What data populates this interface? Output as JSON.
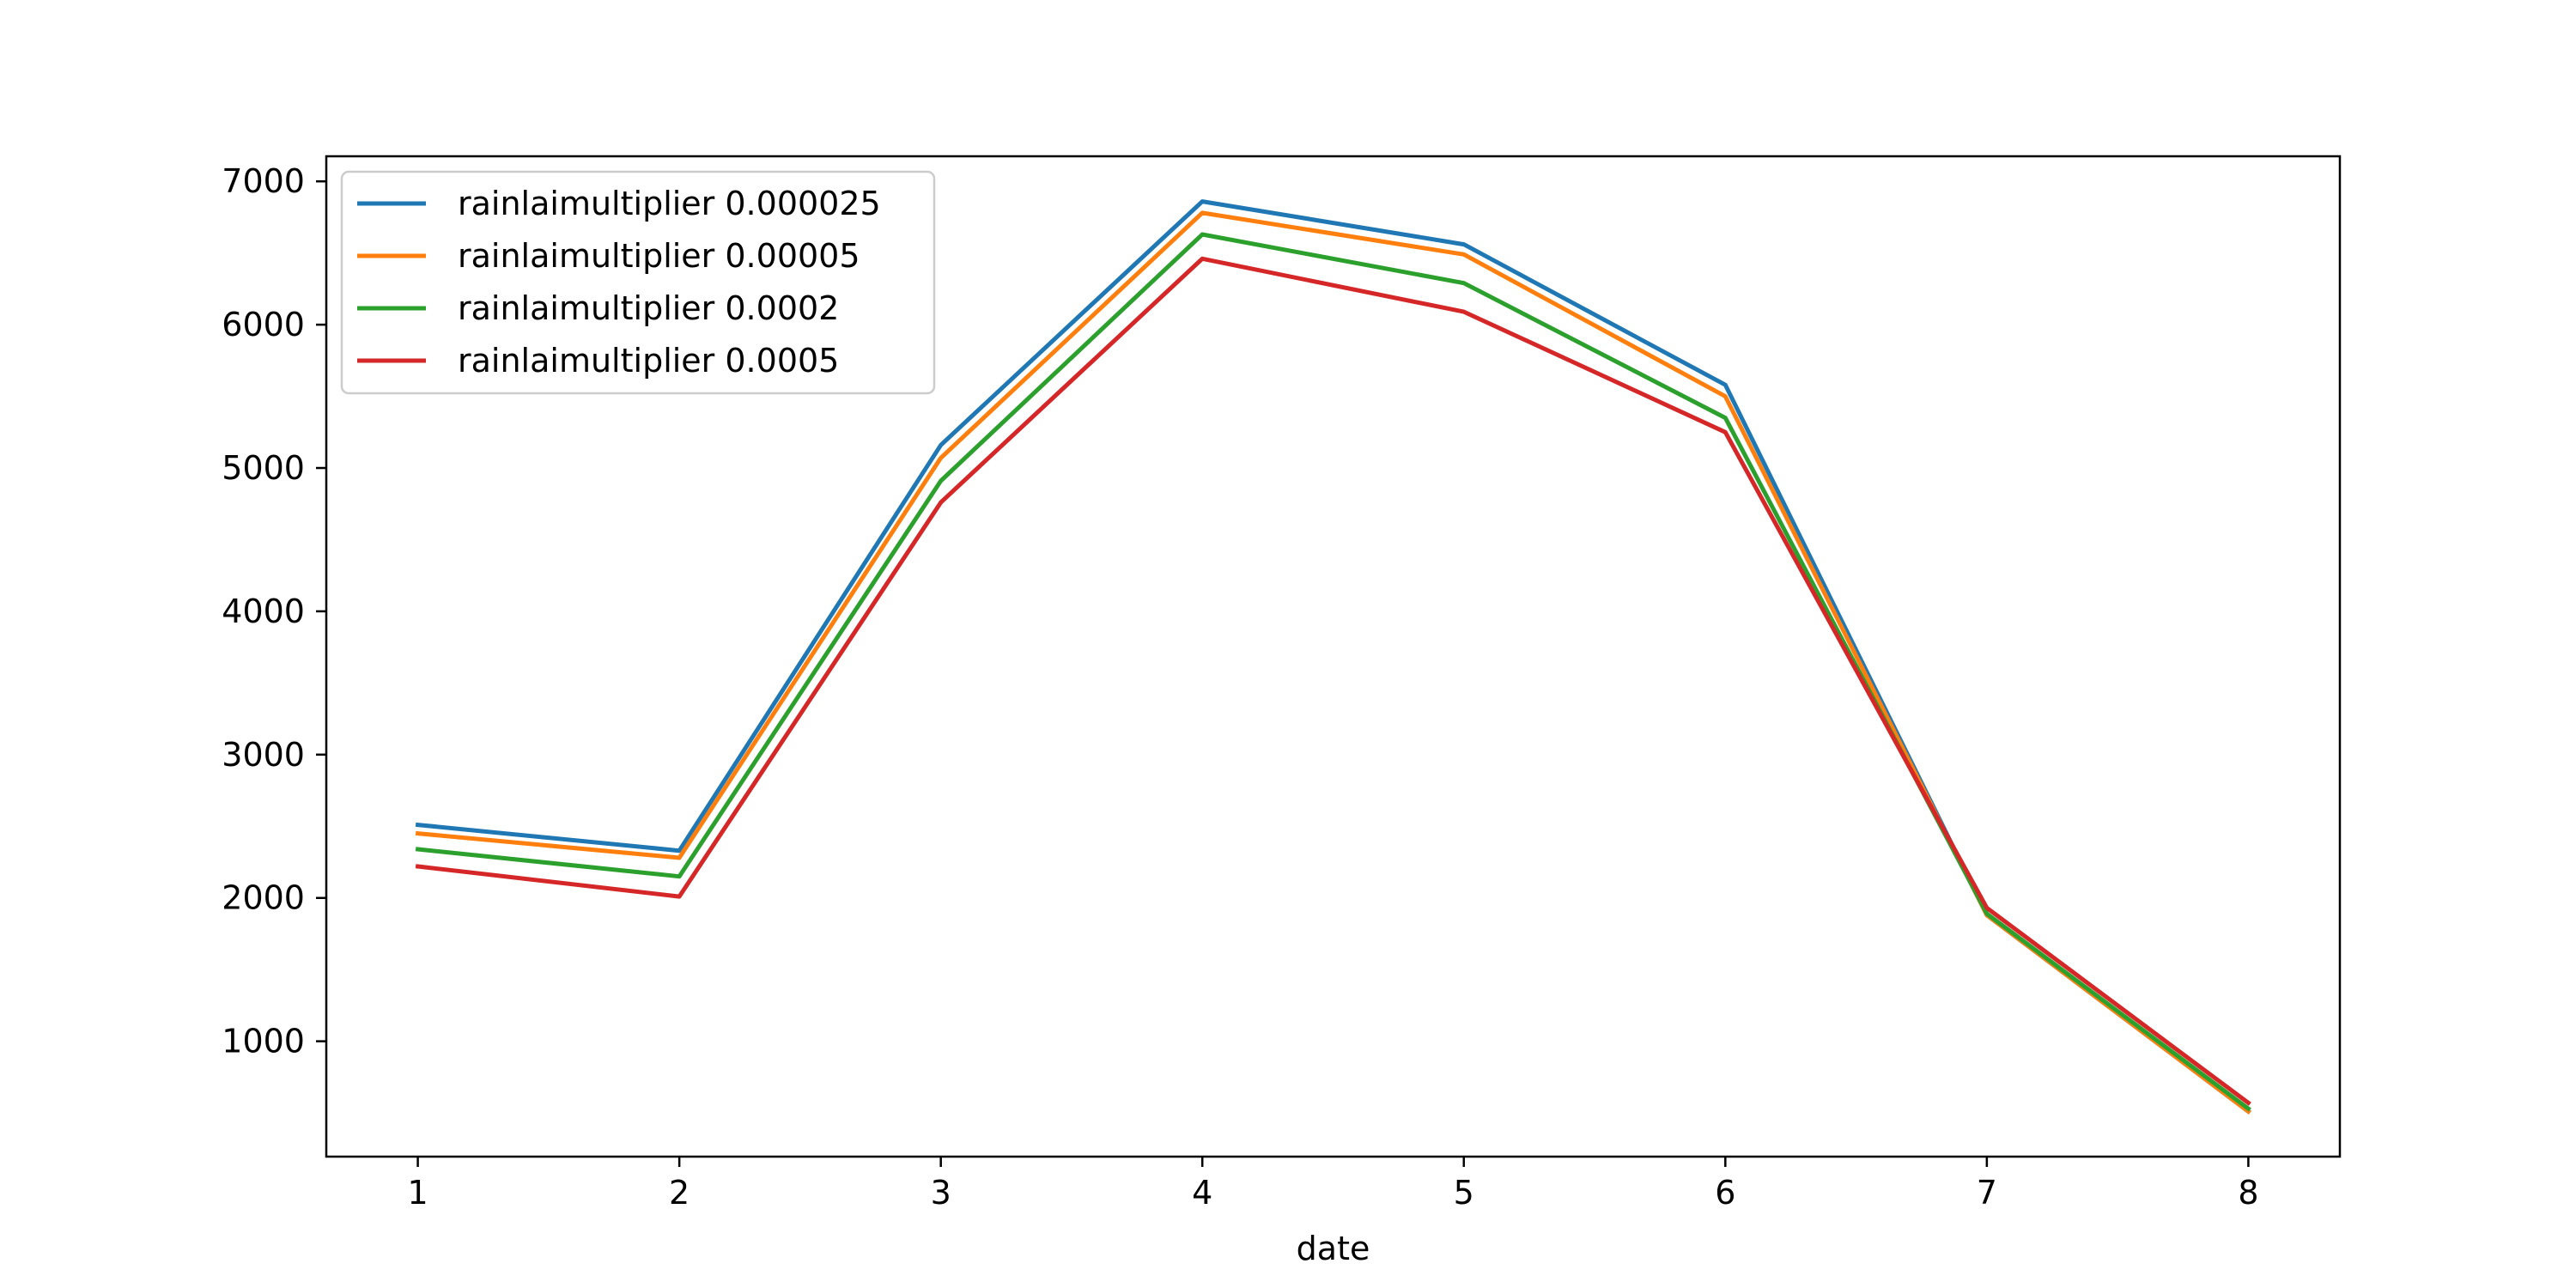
{
  "chart_data": {
    "type": "line",
    "title": "",
    "xlabel": "date",
    "ylabel": "",
    "x": [
      1,
      2,
      3,
      4,
      5,
      6,
      7,
      8
    ],
    "xlim": [
      0.65,
      8.35
    ],
    "ylim": [
      195,
      7175
    ],
    "yticks": [
      1000,
      2000,
      3000,
      4000,
      5000,
      6000,
      7000
    ],
    "grid": false,
    "legend_position": "top-left",
    "series": [
      {
        "name": "rainlaimultiplier 0.000025",
        "color": "#1f77b4",
        "values": [
          2510,
          2330,
          5160,
          6860,
          6560,
          5580,
          1880,
          510
        ]
      },
      {
        "name": "rainlaimultiplier 0.00005",
        "color": "#ff7f0e",
        "values": [
          2450,
          2280,
          5070,
          6780,
          6490,
          5500,
          1880,
          510
        ]
      },
      {
        "name": "rainlaimultiplier 0.0002",
        "color": "#2ca02c",
        "values": [
          2340,
          2150,
          4910,
          6630,
          6290,
          5350,
          1890,
          530
        ]
      },
      {
        "name": "rainlaimultiplier 0.0005",
        "color": "#d62728",
        "values": [
          2220,
          2010,
          4760,
          6460,
          6090,
          5250,
          1930,
          570
        ]
      }
    ]
  }
}
